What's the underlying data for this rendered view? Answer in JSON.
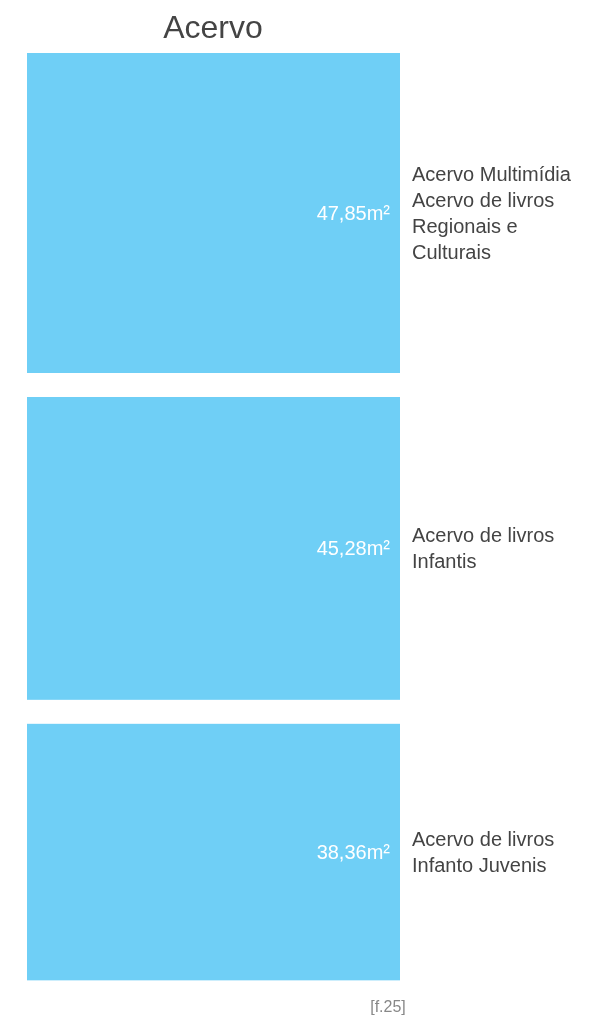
{
  "chart_data": {
    "type": "other",
    "title": "Acervo",
    "categories": [
      "Acervo Multimídia\nAcervo de livros\nRegionais e\nCulturais",
      "Acervo de livros\nInfantis",
      "Acervo de livros\nInfanto Juvenis"
    ],
    "values": [
      47.85,
      45.28,
      38.36
    ],
    "value_labels": [
      "47,85m²",
      "45,28m²",
      "38,36m²"
    ],
    "color": "#6fcff6",
    "annotations": [
      "[f.25]"
    ]
  }
}
